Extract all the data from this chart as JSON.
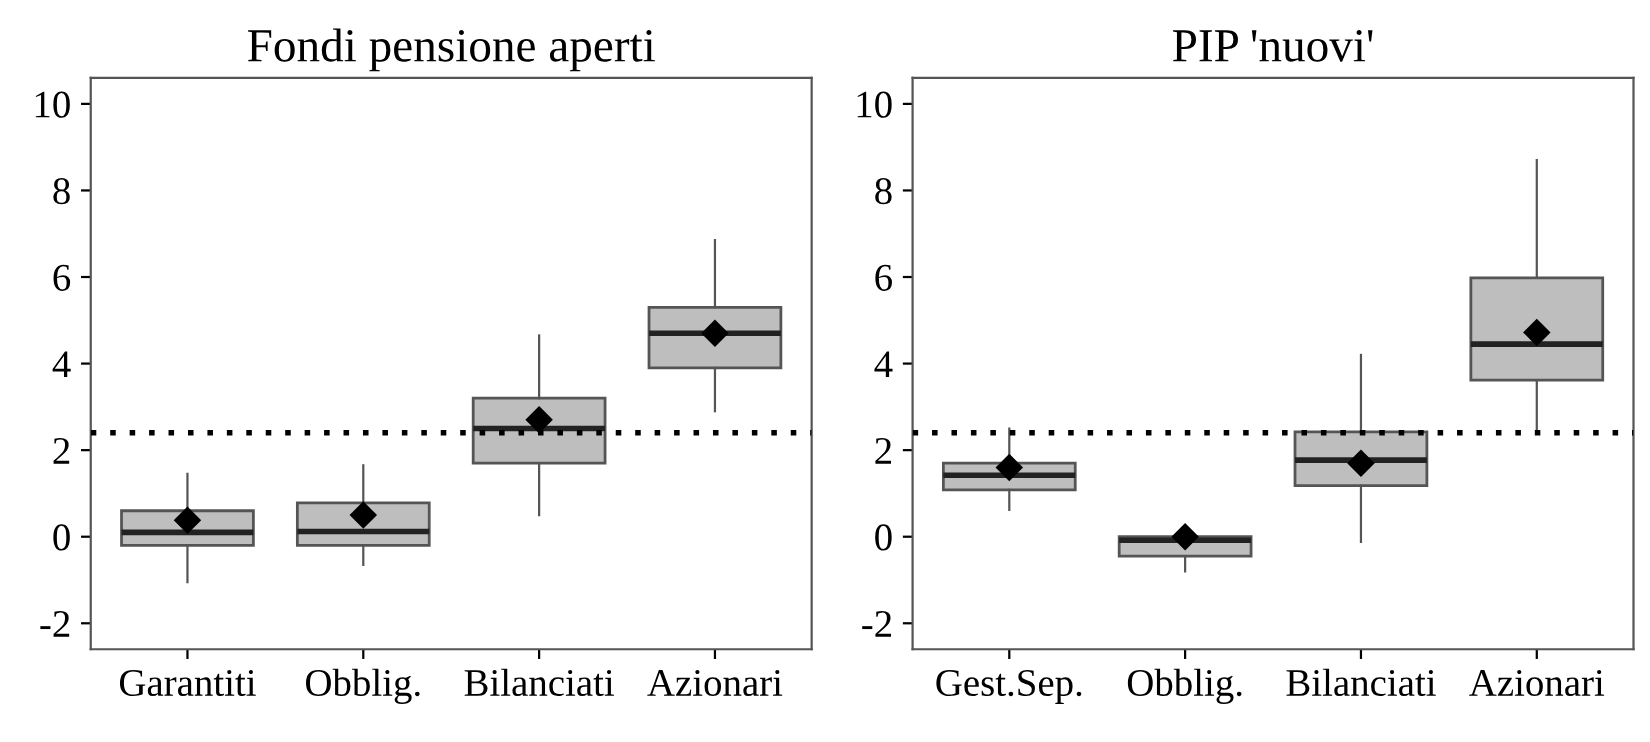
{
  "chart_data": [
    {
      "type": "box",
      "title": "Fondi pensione aperti",
      "categories": [
        "Garantiti",
        "Obblig.",
        "Bilanciati",
        "Azionari"
      ],
      "boxes": [
        {
          "low": -1.05,
          "q1": -0.2,
          "median": 0.1,
          "q3": 0.6,
          "high": 1.45,
          "mean": 0.38
        },
        {
          "low": -0.65,
          "q1": -0.2,
          "median": 0.12,
          "q3": 0.78,
          "high": 1.65,
          "mean": 0.5
        },
        {
          "low": 0.5,
          "q1": 1.7,
          "median": 2.5,
          "q3": 3.2,
          "high": 4.65,
          "mean": 2.7
        },
        {
          "low": 2.9,
          "q1": 3.9,
          "median": 4.7,
          "q3": 5.3,
          "high": 6.85,
          "mean": 4.7
        }
      ],
      "color": "#bebebe",
      "marker": "diamond",
      "ylim": [
        -2.6,
        10.6
      ],
      "yticks": [
        -2,
        0,
        2,
        4,
        6,
        8,
        10
      ],
      "grid": false,
      "ref_lines": [
        {
          "axis": "y",
          "value": 2.4,
          "color": "#000000",
          "line_style": "dotted"
        }
      ]
    },
    {
      "type": "box",
      "title": "PIP 'nuovi'",
      "categories": [
        "Gest.Sep.",
        "Obblig.",
        "Bilanciati",
        "Azionari"
      ],
      "boxes": [
        {
          "low": 0.62,
          "q1": 1.08,
          "median": 1.42,
          "q3": 1.7,
          "high": 2.5,
          "mean": 1.6
        },
        {
          "low": -0.8,
          "q1": -0.45,
          "median": -0.08,
          "q3": 0.0,
          "high": 0.0,
          "mean": 0.0
        },
        {
          "low": -0.12,
          "q1": 1.18,
          "median": 1.77,
          "q3": 2.42,
          "high": 4.2,
          "mean": 1.7
        },
        {
          "low": 2.4,
          "q1": 3.62,
          "median": 4.45,
          "q3": 5.98,
          "high": 8.7,
          "mean": 4.72
        }
      ],
      "color": "#bebebe",
      "marker": "diamond",
      "ylim": [
        -2.6,
        10.6
      ],
      "yticks": [
        -2,
        0,
        2,
        4,
        6,
        8,
        10
      ],
      "grid": false,
      "ref_lines": [
        {
          "axis": "y",
          "value": 2.4,
          "color": "#000000",
          "line_style": "dotted"
        }
      ]
    }
  ]
}
